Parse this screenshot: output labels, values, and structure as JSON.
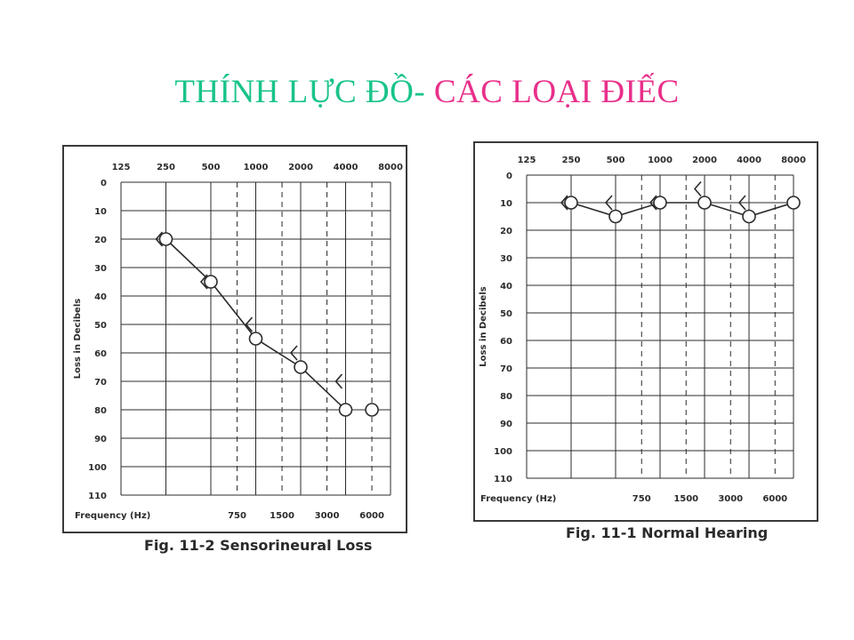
{
  "slide": {
    "title_part1": "THÍNH LỰC ĐỒ-",
    "title_part2": " CÁC LOẠI ĐIẾC",
    "title_colors": {
      "part1": "#19c38b",
      "part2": "#e8308a"
    }
  },
  "chart_data": [
    {
      "type": "line",
      "caption": "Fig. 11-2  Sensorineural Loss",
      "ylabel": "Loss in Decibels",
      "xlabel": "Frequency (Hz)",
      "x_top_ticks": [
        "125",
        "250",
        "500",
        "1000",
        "2000",
        "4000",
        "8000"
      ],
      "x_bottom_ticks": [
        "750",
        "1500",
        "3000",
        "6000"
      ],
      "y_ticks": [
        "0",
        "10",
        "20",
        "30",
        "40",
        "50",
        "60",
        "70",
        "80",
        "90",
        "100",
        "110"
      ],
      "ylim": [
        0,
        110
      ],
      "y_inverted": true,
      "series": [
        {
          "marker": "circle",
          "connected": true,
          "x": [
            250,
            500,
            1000,
            2000,
            4000
          ],
          "y": [
            20,
            35,
            55,
            65,
            80
          ]
        },
        {
          "marker": "circle",
          "connected": false,
          "x": [
            6000
          ],
          "y": [
            80
          ]
        },
        {
          "marker": "bracket",
          "connected": false,
          "x": [
            250,
            500,
            1000,
            2000,
            4000
          ],
          "y": [
            20,
            35,
            50,
            60,
            70
          ]
        }
      ]
    },
    {
      "type": "line",
      "caption": "Fig. 11-1 Normal Hearing",
      "ylabel": "Loss in Decibels",
      "xlabel": "Frequency (Hz)",
      "x_top_ticks": [
        "125",
        "250",
        "500",
        "1000",
        "2000",
        "4000",
        "8000"
      ],
      "x_bottom_ticks": [
        "750",
        "1500",
        "3000",
        "6000"
      ],
      "y_ticks": [
        "0",
        "10",
        "20",
        "30",
        "40",
        "50",
        "60",
        "70",
        "80",
        "90",
        "100",
        "110"
      ],
      "ylim": [
        0,
        110
      ],
      "y_inverted": true,
      "series": [
        {
          "marker": "circle",
          "connected": true,
          "x": [
            250,
            500,
            1000,
            2000,
            4000,
            8000
          ],
          "y": [
            10,
            15,
            10,
            10,
            15,
            10
          ]
        },
        {
          "marker": "bracket",
          "connected": false,
          "x": [
            250,
            500,
            1000,
            2000,
            4000
          ],
          "y": [
            10,
            10,
            10,
            5,
            10
          ]
        }
      ]
    }
  ]
}
